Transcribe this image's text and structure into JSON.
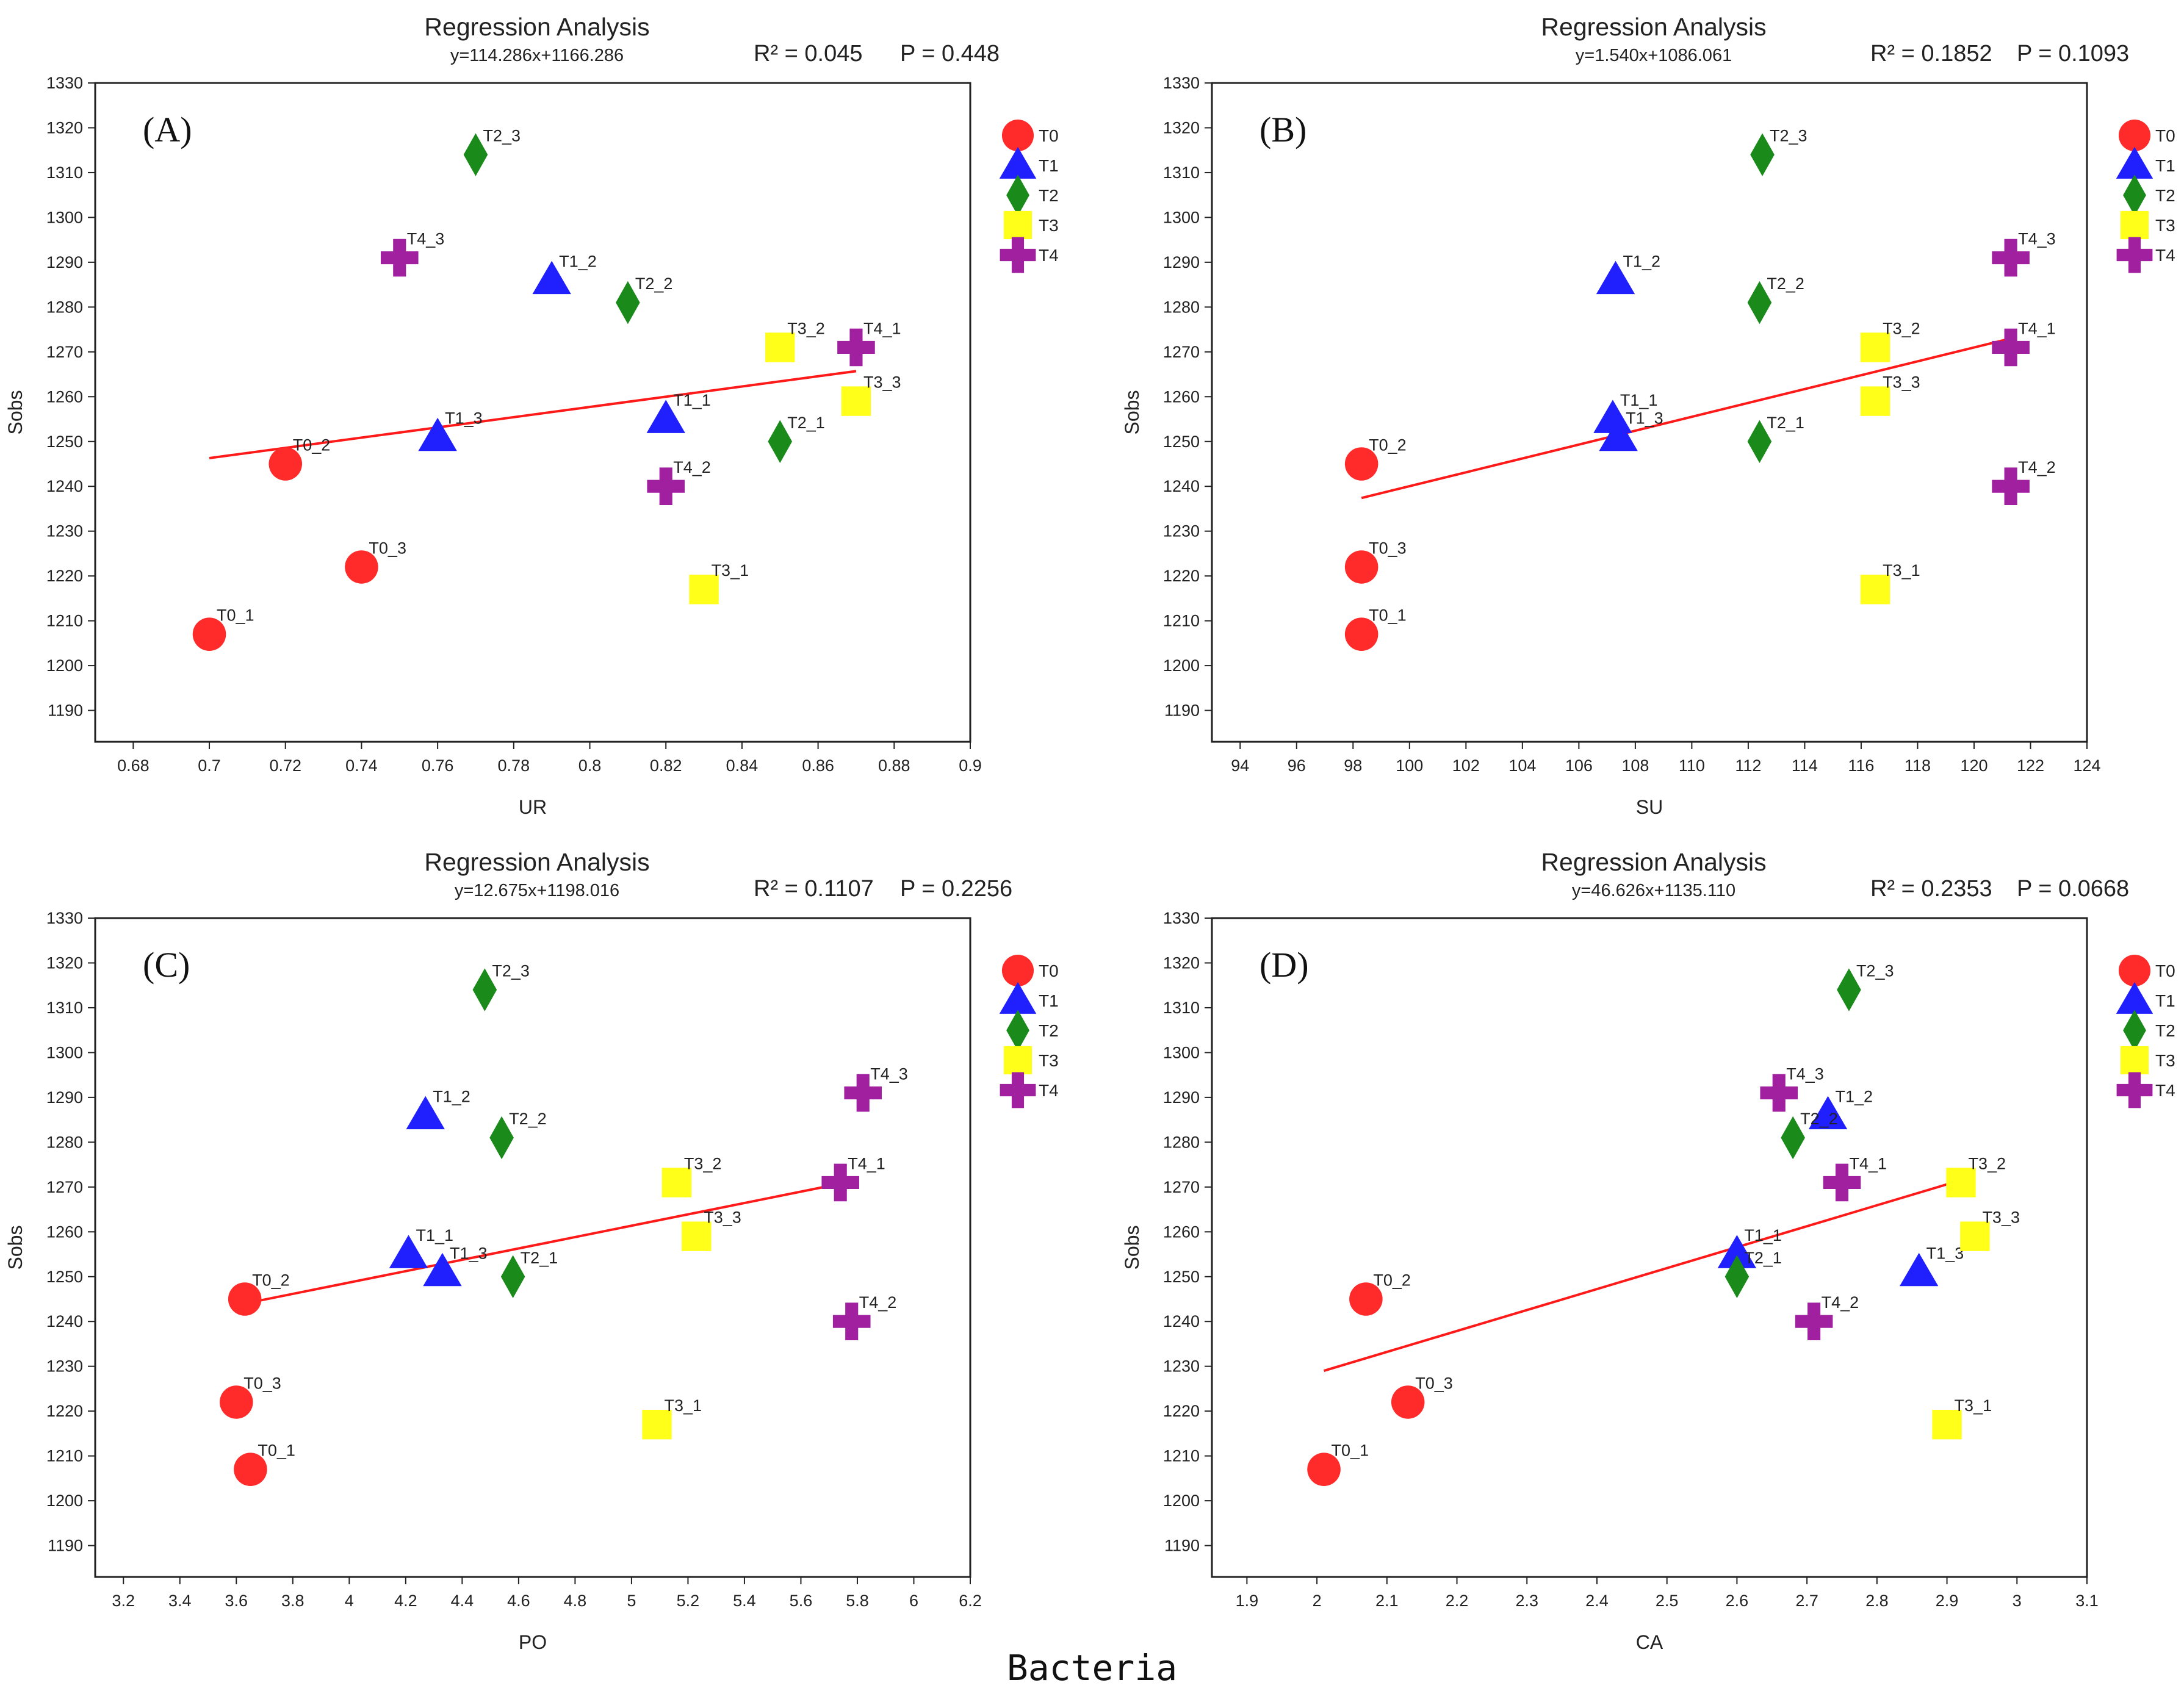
{
  "footer": "Bacteria",
  "legend": [
    {
      "name": "T0",
      "shape": "circle",
      "color": "#ff2b2b"
    },
    {
      "name": "T1",
      "shape": "triangle",
      "color": "#2020ff"
    },
    {
      "name": "T2",
      "shape": "diamond",
      "color": "#1a8a1a"
    },
    {
      "name": "T3",
      "shape": "square",
      "color": "#ffff1a"
    },
    {
      "name": "T4",
      "shape": "plus",
      "color": "#a020a0"
    }
  ],
  "fit_color": "#ff1a1a",
  "chart_data": [
    {
      "type": "scatter",
      "panel": "(A)",
      "title": "Regression Analysis",
      "equation": "y=114.286x+1166.286",
      "r2": "R² = 0.045",
      "p": "P = 0.448",
      "xlabel": "UR",
      "ylabel": "Sobs",
      "xlim": [
        0.67,
        0.9
      ],
      "ylim": [
        1183,
        1330
      ],
      "xticks": [
        "0.68",
        "0.7",
        "0.72",
        "0.74",
        "0.76",
        "0.78",
        "0.8",
        "0.82",
        "0.84",
        "0.86",
        "0.88",
        "0.9"
      ],
      "yticks": [
        "1190",
        "1200",
        "1210",
        "1220",
        "1230",
        "1240",
        "1250",
        "1260",
        "1270",
        "1280",
        "1290",
        "1300",
        "1310",
        "1320",
        "1330"
      ],
      "fit": {
        "x": [
          0.7,
          0.87
        ],
        "y": [
          1246.3,
          1265.7
        ]
      },
      "points": [
        {
          "label": "T0_1",
          "group": "T0",
          "x": 0.7,
          "y": 1207
        },
        {
          "label": "T0_2",
          "group": "T0",
          "x": 0.72,
          "y": 1245
        },
        {
          "label": "T0_3",
          "group": "T0",
          "x": 0.74,
          "y": 1222
        },
        {
          "label": "T1_1",
          "group": "T1",
          "x": 0.82,
          "y": 1255
        },
        {
          "label": "T1_2",
          "group": "T1",
          "x": 0.79,
          "y": 1286
        },
        {
          "label": "T1_3",
          "group": "T1",
          "x": 0.76,
          "y": 1251
        },
        {
          "label": "T2_1",
          "group": "T2",
          "x": 0.85,
          "y": 1250
        },
        {
          "label": "T2_2",
          "group": "T2",
          "x": 0.81,
          "y": 1281
        },
        {
          "label": "T2_3",
          "group": "T2",
          "x": 0.77,
          "y": 1314
        },
        {
          "label": "T3_1",
          "group": "T3",
          "x": 0.83,
          "y": 1217
        },
        {
          "label": "T3_2",
          "group": "T3",
          "x": 0.85,
          "y": 1271
        },
        {
          "label": "T3_3",
          "group": "T3",
          "x": 0.87,
          "y": 1259
        },
        {
          "label": "T4_1",
          "group": "T4",
          "x": 0.87,
          "y": 1271
        },
        {
          "label": "T4_2",
          "group": "T4",
          "x": 0.82,
          "y": 1240
        },
        {
          "label": "T4_3",
          "group": "T4",
          "x": 0.75,
          "y": 1291
        }
      ]
    },
    {
      "type": "scatter",
      "panel": "(B)",
      "title": "Regression Analysis",
      "equation": "y=1.540x+1086.061",
      "r2": "R² = 0.1852",
      "p": "P = 0.1093",
      "xlabel": "SU",
      "ylabel": "Sobs",
      "xlim": [
        93,
        124
      ],
      "ylim": [
        1183,
        1330
      ],
      "xticks": [
        "94",
        "96",
        "98",
        "100",
        "102",
        "104",
        "106",
        "108",
        "110",
        "112",
        "114",
        "116",
        "118",
        "120",
        "122",
        "124"
      ],
      "yticks": [
        "1190",
        "1200",
        "1210",
        "1220",
        "1230",
        "1240",
        "1250",
        "1260",
        "1270",
        "1280",
        "1290",
        "1300",
        "1310",
        "1320",
        "1330"
      ],
      "fit": {
        "x": [
          98.3,
          121.3
        ],
        "y": [
          1237.4,
          1273.0
        ]
      },
      "points": [
        {
          "label": "T0_1",
          "group": "T0",
          "x": 98.3,
          "y": 1207
        },
        {
          "label": "T0_2",
          "group": "T0",
          "x": 98.3,
          "y": 1245
        },
        {
          "label": "T0_3",
          "group": "T0",
          "x": 98.3,
          "y": 1222
        },
        {
          "label": "T1_1",
          "group": "T1",
          "x": 107.2,
          "y": 1255
        },
        {
          "label": "T1_2",
          "group": "T1",
          "x": 107.3,
          "y": 1286
        },
        {
          "label": "T1_3",
          "group": "T1",
          "x": 107.4,
          "y": 1251
        },
        {
          "label": "T2_1",
          "group": "T2",
          "x": 112.4,
          "y": 1250
        },
        {
          "label": "T2_2",
          "group": "T2",
          "x": 112.4,
          "y": 1281
        },
        {
          "label": "T2_3",
          "group": "T2",
          "x": 112.5,
          "y": 1314
        },
        {
          "label": "T3_1",
          "group": "T3",
          "x": 116.5,
          "y": 1217
        },
        {
          "label": "T3_2",
          "group": "T3",
          "x": 116.5,
          "y": 1271
        },
        {
          "label": "T3_3",
          "group": "T3",
          "x": 116.5,
          "y": 1259
        },
        {
          "label": "T4_1",
          "group": "T4",
          "x": 121.3,
          "y": 1271
        },
        {
          "label": "T4_2",
          "group": "T4",
          "x": 121.3,
          "y": 1240
        },
        {
          "label": "T4_3",
          "group": "T4",
          "x": 121.3,
          "y": 1291
        }
      ]
    },
    {
      "type": "scatter",
      "panel": "(C)",
      "title": "Regression Analysis",
      "equation": "y=12.675x+1198.016",
      "r2": "R² = 0.1107",
      "p": "P = 0.2256",
      "xlabel": "PO",
      "ylabel": "Sobs",
      "xlim": [
        3.1,
        6.2
      ],
      "ylim": [
        1183,
        1330
      ],
      "xticks": [
        "3.2",
        "3.4",
        "3.6",
        "3.8",
        "4",
        "4.2",
        "4.4",
        "4.6",
        "4.8",
        "5",
        "5.2",
        "5.4",
        "5.6",
        "5.8",
        "6",
        "6.2"
      ],
      "yticks": [
        "1190",
        "1200",
        "1210",
        "1220",
        "1230",
        "1240",
        "1250",
        "1260",
        "1270",
        "1280",
        "1290",
        "1300",
        "1310",
        "1320",
        "1330"
      ],
      "fit": {
        "x": [
          3.63,
          5.8
        ],
        "y": [
          1244.0,
          1271.5
        ]
      },
      "points": [
        {
          "label": "T0_1",
          "group": "T0",
          "x": 3.65,
          "y": 1207
        },
        {
          "label": "T0_2",
          "group": "T0",
          "x": 3.63,
          "y": 1245
        },
        {
          "label": "T0_3",
          "group": "T0",
          "x": 3.6,
          "y": 1222
        },
        {
          "label": "T1_1",
          "group": "T1",
          "x": 4.21,
          "y": 1255
        },
        {
          "label": "T1_2",
          "group": "T1",
          "x": 4.27,
          "y": 1286
        },
        {
          "label": "T1_3",
          "group": "T1",
          "x": 4.33,
          "y": 1251
        },
        {
          "label": "T2_1",
          "group": "T2",
          "x": 4.58,
          "y": 1250
        },
        {
          "label": "T2_2",
          "group": "T2",
          "x": 4.54,
          "y": 1281
        },
        {
          "label": "T2_3",
          "group": "T2",
          "x": 4.48,
          "y": 1314
        },
        {
          "label": "T3_1",
          "group": "T3",
          "x": 5.09,
          "y": 1217
        },
        {
          "label": "T3_2",
          "group": "T3",
          "x": 5.16,
          "y": 1271
        },
        {
          "label": "T3_3",
          "group": "T3",
          "x": 5.23,
          "y": 1259
        },
        {
          "label": "T4_1",
          "group": "T4",
          "x": 5.74,
          "y": 1271
        },
        {
          "label": "T4_2",
          "group": "T4",
          "x": 5.78,
          "y": 1240
        },
        {
          "label": "T4_3",
          "group": "T4",
          "x": 5.82,
          "y": 1291
        }
      ]
    },
    {
      "type": "scatter",
      "panel": "(D)",
      "title": "Regression Analysis",
      "equation": "y=46.626x+1135.110",
      "r2": "R² = 0.2353",
      "p": "P = 0.0668",
      "xlabel": "CA",
      "ylabel": "Sobs",
      "xlim": [
        1.85,
        3.1
      ],
      "ylim": [
        1183,
        1330
      ],
      "xticks": [
        "1.9",
        "2",
        "2.1",
        "2.2",
        "2.3",
        "2.4",
        "2.5",
        "2.6",
        "2.7",
        "2.8",
        "2.9",
        "3",
        "3.1"
      ],
      "yticks": [
        "1190",
        "1200",
        "1210",
        "1220",
        "1230",
        "1240",
        "1250",
        "1260",
        "1270",
        "1280",
        "1290",
        "1300",
        "1310",
        "1320",
        "1330"
      ],
      "fit": {
        "x": [
          2.01,
          2.93
        ],
        "y": [
          1229.0,
          1272.0
        ]
      },
      "points": [
        {
          "label": "T0_1",
          "group": "T0",
          "x": 2.01,
          "y": 1207
        },
        {
          "label": "T0_2",
          "group": "T0",
          "x": 2.07,
          "y": 1245
        },
        {
          "label": "T0_3",
          "group": "T0",
          "x": 2.13,
          "y": 1222
        },
        {
          "label": "T1_1",
          "group": "T1",
          "x": 2.6,
          "y": 1255
        },
        {
          "label": "T1_2",
          "group": "T1",
          "x": 2.73,
          "y": 1286
        },
        {
          "label": "T1_3",
          "group": "T1",
          "x": 2.86,
          "y": 1251
        },
        {
          "label": "T2_1",
          "group": "T2",
          "x": 2.6,
          "y": 1250
        },
        {
          "label": "T2_2",
          "group": "T2",
          "x": 2.68,
          "y": 1281
        },
        {
          "label": "T2_3",
          "group": "T2",
          "x": 2.76,
          "y": 1314
        },
        {
          "label": "T3_1",
          "group": "T3",
          "x": 2.9,
          "y": 1217
        },
        {
          "label": "T3_2",
          "group": "T3",
          "x": 2.92,
          "y": 1271
        },
        {
          "label": "T3_3",
          "group": "T3",
          "x": 2.94,
          "y": 1259
        },
        {
          "label": "T4_1",
          "group": "T4",
          "x": 2.75,
          "y": 1271
        },
        {
          "label": "T4_2",
          "group": "T4",
          "x": 2.71,
          "y": 1240
        },
        {
          "label": "T4_3",
          "group": "T4",
          "x": 2.66,
          "y": 1291
        }
      ]
    }
  ]
}
